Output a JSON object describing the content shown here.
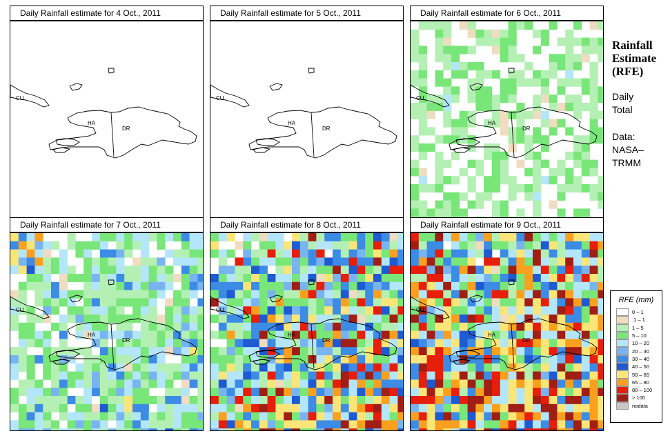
{
  "panels": [
    {
      "title": "Daily Rainfall estimate for  4 Oct., 2011",
      "intensity": 0.2
    },
    {
      "title": "Daily Rainfall estimate for  5 Oct., 2011",
      "intensity": 0.3
    },
    {
      "title": "Daily Rainfall estimate for  6 Oct., 2011",
      "intensity": 0.85
    },
    {
      "title": "Daily Rainfall estimate for  7 Oct., 2011",
      "intensity": 1.2
    },
    {
      "title": "Daily Rainfall estimate for  8 Oct., 2011",
      "intensity": 1.7
    },
    {
      "title": "Daily Rainfall estimate for  9 Oct., 2011",
      "intensity": 2.0
    }
  ],
  "map_labels": {
    "cu": "CU",
    "ha": "HA",
    "dr": "DR"
  },
  "side": {
    "title_line1": "Rainfall",
    "title_line2": "Estimate",
    "title_line3": "(RFE)",
    "period_line1": "Daily",
    "period_line2": "Total",
    "source_line1": "Data:",
    "source_line2": "NASA–",
    "source_line3": "TRMM"
  },
  "legend": {
    "title": "RFE (mm)",
    "items": [
      {
        "label": "0 – 1",
        "color": "#ffffff"
      },
      {
        "label": ".1 – 1",
        "color": "#f0dcc0"
      },
      {
        "label": "1 – 5",
        "color": "#b4f0b4"
      },
      {
        "label": "5 – 10",
        "color": "#78e678"
      },
      {
        "label": "10 – 20",
        "color": "#b4e6fa"
      },
      {
        "label": "20 – 30",
        "color": "#78b4f0"
      },
      {
        "label": "30 – 40",
        "color": "#3c8ce6"
      },
      {
        "label": "40 – 50",
        "color": "#1e5ad2"
      },
      {
        "label": "50 – 65",
        "color": "#fae678"
      },
      {
        "label": "65 – 80",
        "color": "#faa01e"
      },
      {
        "label": "80 – 100",
        "color": "#e61e0a"
      },
      {
        "label": "> 100",
        "color": "#a01e14"
      },
      {
        "label": "nodata",
        "color": "#c8c8c8"
      }
    ]
  }
}
